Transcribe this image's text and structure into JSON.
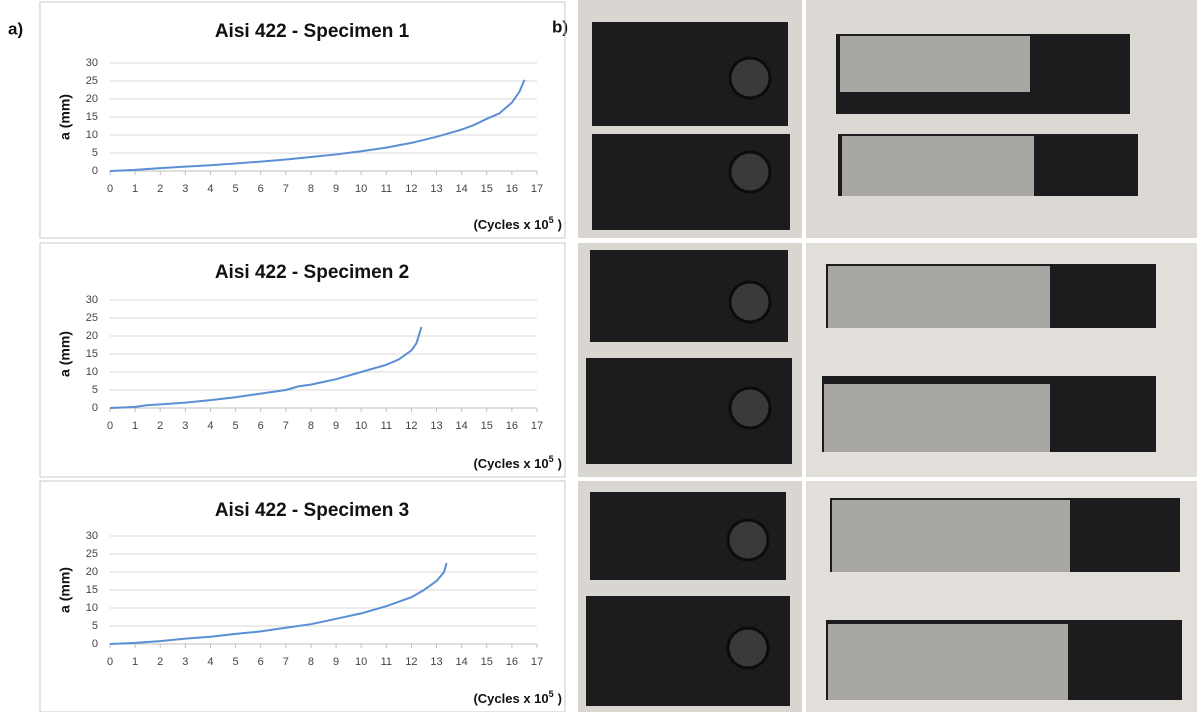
{
  "panels": {
    "a": "a)",
    "b": "b)"
  },
  "chart_data": [
    {
      "type": "line",
      "title": "Aisi 422 - Specimen 1",
      "y_label": "a (mm)",
      "x_label": {
        "base": "(Cycles x 10",
        "sup": "5",
        "tail": ")"
      },
      "x": [
        0,
        1,
        2,
        3,
        4,
        5,
        6,
        7,
        8,
        9,
        10,
        11,
        12,
        13,
        14,
        14.5,
        15,
        15.5,
        16,
        16.3,
        16.5
      ],
      "values": [
        0,
        0.3,
        0.8,
        1.2,
        1.6,
        2.1,
        2.6,
        3.2,
        3.9,
        4.6,
        5.5,
        6.5,
        7.8,
        9.5,
        11.5,
        12.8,
        14.5,
        16,
        19,
        22,
        25.3
      ],
      "color": "#5b8fd4",
      "xlim": [
        0,
        17
      ],
      "xticks": [
        0,
        1,
        2,
        3,
        4,
        5,
        6,
        7,
        8,
        9,
        10,
        11,
        12,
        13,
        14,
        15,
        16,
        17
      ],
      "ylim": [
        0,
        30
      ],
      "yticks": [
        0,
        5,
        10,
        15,
        20,
        25,
        30
      ],
      "grid": true
    },
    {
      "type": "line",
      "title": "Aisi 422 - Specimen 2",
      "y_label": "a (mm)",
      "x_label": {
        "base": "(Cycles x 10",
        "sup": "5",
        "tail": ")"
      },
      "x": [
        0,
        1,
        1.5,
        2,
        3,
        4,
        5,
        6,
        7,
        7.5,
        8,
        9,
        10,
        11,
        11.5,
        12,
        12.2,
        12.4
      ],
      "values": [
        0,
        0.3,
        0.8,
        1,
        1.5,
        2.2,
        3,
        4,
        5,
        6,
        6.5,
        8,
        10,
        12,
        13.5,
        16,
        18,
        22.5
      ],
      "color": "#5b8fd4",
      "xlim": [
        0,
        17
      ],
      "xticks": [
        0,
        1,
        2,
        3,
        4,
        5,
        6,
        7,
        8,
        9,
        10,
        11,
        12,
        13,
        14,
        15,
        16,
        17
      ],
      "ylim": [
        0,
        30
      ],
      "yticks": [
        0,
        5,
        10,
        15,
        20,
        25,
        30
      ],
      "grid": true
    },
    {
      "type": "line",
      "title": "Aisi 422 - Specimen 3",
      "y_label": "a (mm)",
      "x_label": {
        "base": "(Cycles x 10",
        "sup": "5",
        "tail": ")"
      },
      "x": [
        0,
        1,
        2,
        3,
        4,
        5,
        6,
        7,
        8,
        9,
        10,
        11,
        12,
        12.5,
        13,
        13.3,
        13.4
      ],
      "values": [
        0,
        0.3,
        0.8,
        1.5,
        2,
        2.8,
        3.5,
        4.5,
        5.5,
        7,
        8.5,
        10.5,
        13,
        15,
        17.5,
        20,
        22.5
      ],
      "color": "#5b8fd4",
      "xlim": [
        0,
        17
      ],
      "xticks": [
        0,
        1,
        2,
        3,
        4,
        5,
        6,
        7,
        8,
        9,
        10,
        11,
        12,
        13,
        14,
        15,
        16,
        17
      ],
      "ylim": [
        0,
        30
      ],
      "yticks": [
        0,
        5,
        10,
        15,
        20,
        25,
        30
      ],
      "grid": true
    }
  ]
}
